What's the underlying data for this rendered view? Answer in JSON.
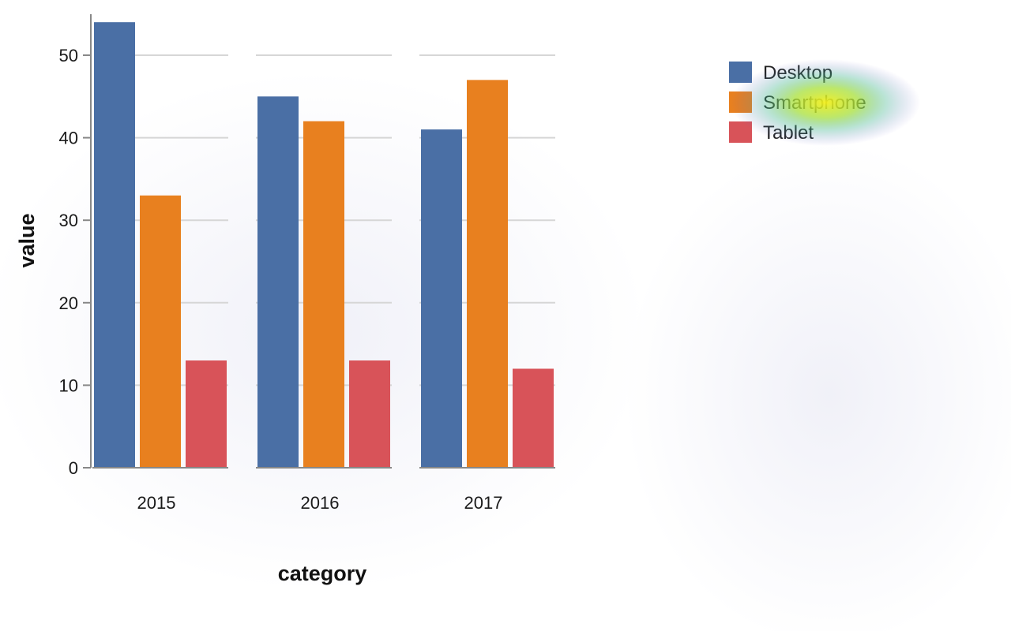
{
  "chart_data": {
    "type": "bar",
    "categories": [
      "2015",
      "2016",
      "2017"
    ],
    "series": [
      {
        "name": "Desktop",
        "values": [
          54,
          45,
          41
        ],
        "color": "#4a6fa5"
      },
      {
        "name": "Smartphone",
        "values": [
          33,
          42,
          47
        ],
        "color": "#e8801f"
      },
      {
        "name": "Tablet",
        "values": [
          13,
          13,
          12
        ],
        "color": "#d85359"
      }
    ],
    "xlabel": "category",
    "ylabel": "value",
    "ylim": [
      0,
      55
    ],
    "yticks": [
      0,
      10,
      20,
      30,
      40,
      50
    ],
    "grid": true,
    "legend_position": "top-right"
  }
}
